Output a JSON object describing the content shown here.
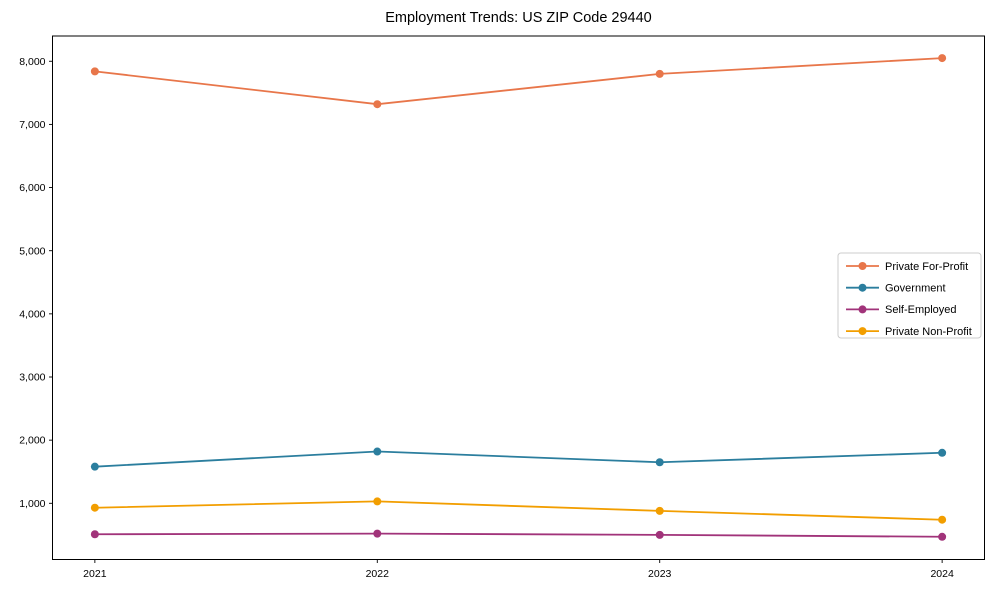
{
  "chart_data": {
    "type": "line",
    "title": "Employment Trends: US ZIP Code 29440",
    "xlabel": "",
    "ylabel": "",
    "x": [
      2021,
      2022,
      2023,
      2024
    ],
    "x_tick_labels": [
      "2021",
      "2022",
      "2023",
      "2024"
    ],
    "yticks": [
      1000,
      2000,
      3000,
      4000,
      5000,
      6000,
      7000,
      8000
    ],
    "y_tick_labels": [
      "1,000",
      "2,000",
      "3,000",
      "4,000",
      "5,000",
      "6,000",
      "7,000",
      "8,000"
    ],
    "xlim": [
      2020.85,
      2024.15
    ],
    "ylim": [
      110,
      8400
    ],
    "grid": false,
    "legend_position": "center right",
    "marker": "circle",
    "series": [
      {
        "name": "Private For-Profit",
        "color": "#E8764A",
        "values": [
          7840,
          7320,
          7800,
          8050
        ]
      },
      {
        "name": "Government",
        "color": "#2B7E9E",
        "values": [
          1580,
          1820,
          1650,
          1800
        ]
      },
      {
        "name": "Self-Employed",
        "color": "#A1337A",
        "values": [
          510,
          520,
          500,
          470
        ]
      },
      {
        "name": "Private Non-Profit",
        "color": "#F29E00",
        "values": [
          930,
          1030,
          880,
          740
        ]
      }
    ]
  }
}
